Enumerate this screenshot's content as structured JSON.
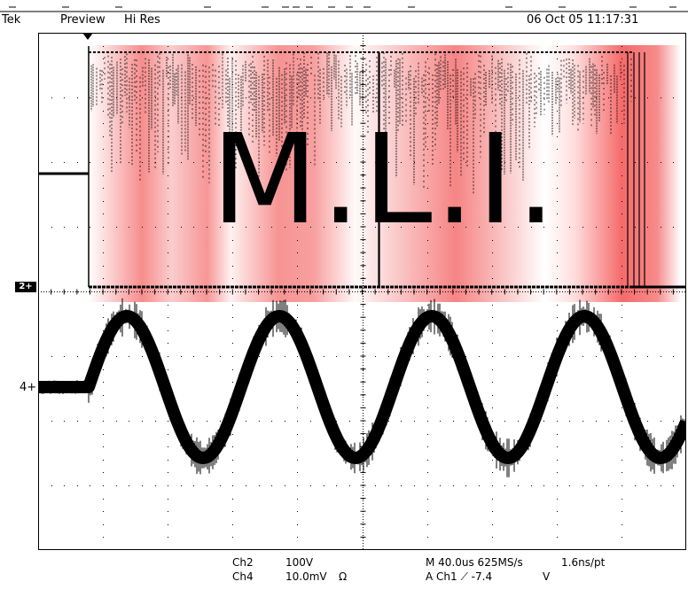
{
  "header": {
    "brand": "Tek",
    "mode": "Preview",
    "acquisition": "Hi Res",
    "timestamp": "06 Oct 05 11:17:31"
  },
  "overlay": {
    "text": "M.L.I."
  },
  "markers": {
    "ch2": "2+",
    "ch4": "4+"
  },
  "readout": {
    "ch2_name": "Ch2",
    "ch2_scale": "100V",
    "ch4_name": "Ch4",
    "ch4_scale": "10.0mV",
    "ch4_unit": "Ω",
    "horizontal": "M 40.0us 625MS/s",
    "resolution": "1.6ns/pt",
    "trigger": "A  Ch1  ⟋  -7.4",
    "trigger_unit": "V"
  },
  "colors": {
    "banner_red": "#f25050",
    "trace": "#000000",
    "grid": "#000000"
  }
}
